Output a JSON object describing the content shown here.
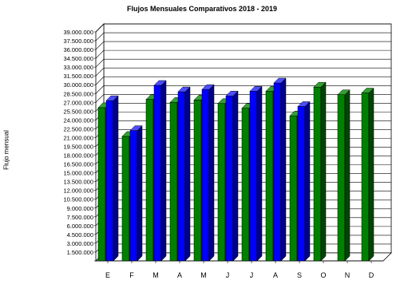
{
  "chart_data": {
    "type": "bar",
    "title": "Flujos Mensuales Comparativos 2018 - 2019",
    "ylabel": "Flujo mensual",
    "xlabel": "",
    "categories": [
      "E",
      "F",
      "M",
      "A",
      "M",
      "J",
      "J",
      "A",
      "S",
      "O",
      "N",
      "D"
    ],
    "series": [
      {
        "color": "#008000",
        "values": [
          26100000,
          21200000,
          27500000,
          27000000,
          27400000,
          26800000,
          26000000,
          28900000,
          24700000,
          29600000,
          28300000,
          28600000
        ]
      },
      {
        "color": "#0000ff",
        "values": [
          27300000,
          22200000,
          29900000,
          28800000,
          29200000,
          28100000,
          28900000,
          30300000,
          26300000,
          null,
          null,
          null
        ]
      }
    ],
    "y_ticks": [
      "1.500.000",
      "3.000.000",
      "4.500.000",
      "6.000.000",
      "7.500.000",
      "9.000.000",
      "10.500.000",
      "12.000.000",
      "13.500.000",
      "15.000.000",
      "16.500.000",
      "18.000.000",
      "19.500.000",
      "21.000.000",
      "22.500.000",
      "24.000.000",
      "25.500.000",
      "27.000.000",
      "28.500.000",
      "30.000.000",
      "31.500.000",
      "33.000.000",
      "34.500.000",
      "36.000.000",
      "37.500.000",
      "39.000.000"
    ],
    "ylim": [
      0,
      39000000
    ],
    "grid": true,
    "legend": "none"
  }
}
